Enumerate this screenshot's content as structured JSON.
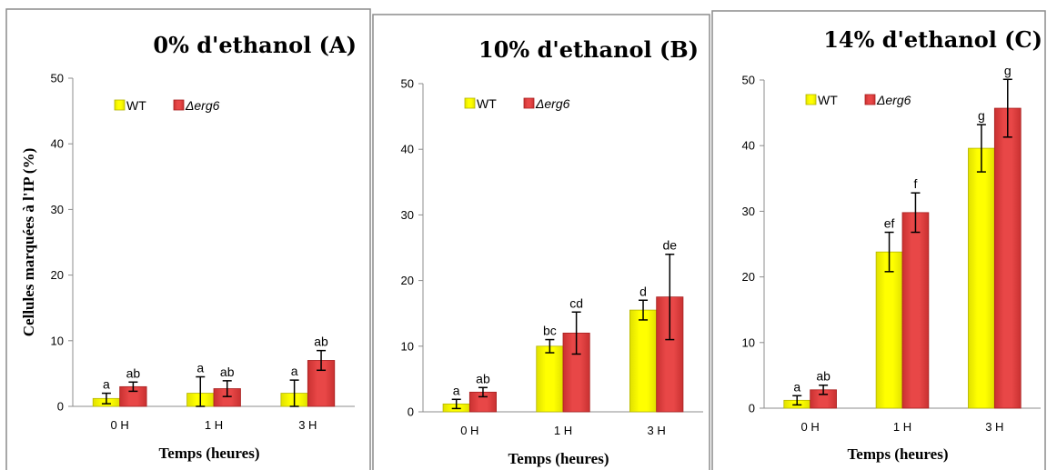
{
  "chart_data": [
    {
      "type": "bar",
      "title": "0% d'ethanol (A)",
      "xlabel": "Temps (heures)",
      "ylabel": "Cellules marquées à l'IP (%)",
      "categories": [
        "0 H",
        "1 H",
        "3 H"
      ],
      "ylim": [
        0,
        50
      ],
      "yticks": [
        0,
        10,
        20,
        30,
        40,
        50
      ],
      "legend": "top-left",
      "series": [
        {
          "name": "WT",
          "values": [
            1.2,
            2.0,
            2.0
          ],
          "errors": [
            0.8,
            2.5,
            2.0
          ],
          "labels": [
            "a",
            "a",
            "a"
          ]
        },
        {
          "name": "Δerg6",
          "values": [
            3.0,
            2.7,
            7.0
          ],
          "errors": [
            0.7,
            1.2,
            1.5
          ],
          "labels": [
            "ab",
            "ab",
            "ab"
          ]
        }
      ]
    },
    {
      "type": "bar",
      "title": "10% d'ethanol (B)",
      "xlabel": "Temps (heures)",
      "ylabel": "",
      "categories": [
        "0 H",
        "1 H",
        "3 H"
      ],
      "ylim": [
        0,
        50
      ],
      "yticks": [
        0,
        10,
        20,
        30,
        40,
        50
      ],
      "legend": "top-left",
      "series": [
        {
          "name": "WT",
          "values": [
            1.2,
            10.0,
            15.5
          ],
          "errors": [
            0.7,
            1.0,
            1.5
          ],
          "labels": [
            "a",
            "bc",
            "d"
          ]
        },
        {
          "name": "Δerg6",
          "values": [
            3.0,
            12.0,
            17.5
          ],
          "errors": [
            0.7,
            3.2,
            6.5
          ],
          "labels": [
            "ab",
            "cd",
            "de"
          ]
        }
      ]
    },
    {
      "type": "bar",
      "title": "14% d'ethanol (C)",
      "xlabel": "Temps (heures)",
      "ylabel": "",
      "categories": [
        "0 H",
        "1 H",
        "3 H"
      ],
      "ylim": [
        0,
        50
      ],
      "yticks": [
        0,
        10,
        20,
        30,
        40,
        50
      ],
      "legend": "top-left",
      "series": [
        {
          "name": "WT",
          "values": [
            1.2,
            23.8,
            39.6
          ],
          "errors": [
            0.7,
            3.0,
            3.6
          ],
          "labels": [
            "a",
            "ef",
            "g"
          ]
        },
        {
          "name": "Δerg6",
          "values": [
            2.8,
            29.8,
            45.7
          ],
          "errors": [
            0.7,
            3.0,
            4.4
          ],
          "labels": [
            "ab",
            "f",
            "g"
          ]
        }
      ]
    }
  ],
  "colors": {
    "wt": "#ffff00",
    "wt_edge": "#b5b500",
    "erg6": "#e84747",
    "erg6_edge": "#a82020"
  }
}
